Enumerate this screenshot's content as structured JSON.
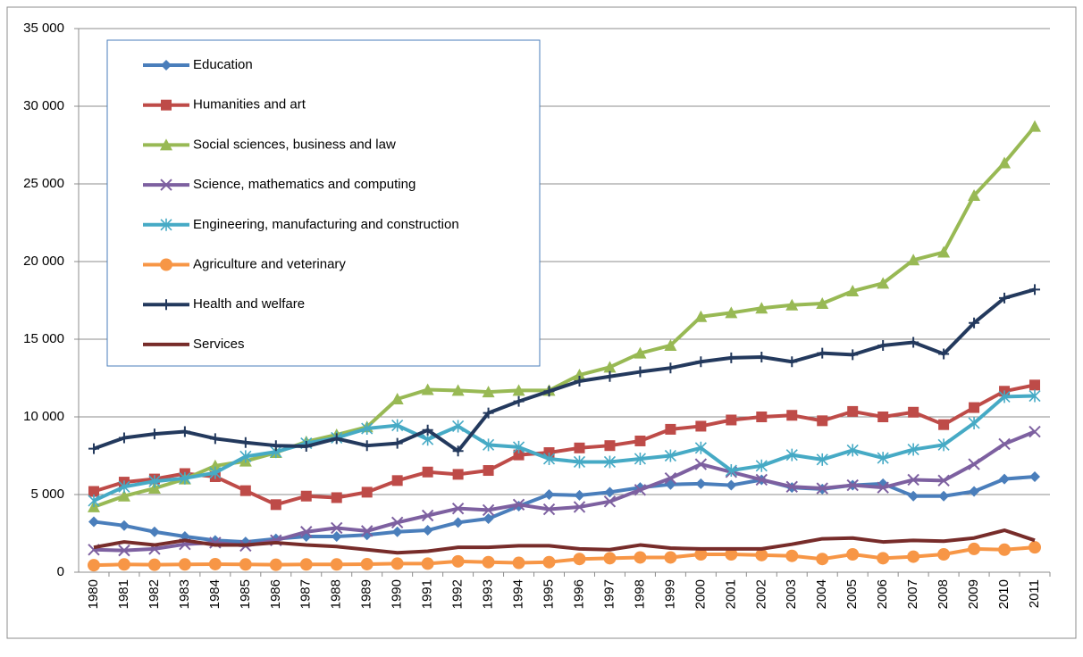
{
  "chart_data": {
    "type": "line",
    "categories": [
      "1980",
      "1981",
      "1982",
      "1983",
      "1984",
      "1985",
      "1986",
      "1987",
      "1988",
      "1989",
      "1990",
      "1991",
      "1992",
      "1993",
      "1994",
      "1995",
      "1996",
      "1997",
      "1998",
      "1999",
      "2000",
      "2001",
      "2002",
      "2003",
      "2004",
      "2005",
      "2006",
      "2007",
      "2008",
      "2009",
      "2010",
      "2011"
    ],
    "series": [
      {
        "name": "Education",
        "color": "#4a7ebb",
        "marker": "diamond",
        "values": [
          3250,
          3000,
          2600,
          2300,
          2050,
          1950,
          2150,
          2300,
          2300,
          2400,
          2600,
          2700,
          3200,
          3450,
          4250,
          5000,
          4950,
          5150,
          5450,
          5650,
          5700,
          5600,
          5950,
          5450,
          5350,
          5600,
          5700,
          4900,
          4900,
          5200,
          6000,
          6150
        ]
      },
      {
        "name": "Humanities and art",
        "color": "#be4b48",
        "marker": "square",
        "values": [
          5200,
          5800,
          6000,
          6350,
          6150,
          5250,
          4350,
          4900,
          4800,
          5150,
          5900,
          6450,
          6300,
          6550,
          7550,
          7700,
          8000,
          8150,
          8450,
          9200,
          9400,
          9800,
          10000,
          10100,
          9750,
          10350,
          10000,
          10300,
          9500,
          10600,
          11650,
          12050
        ]
      },
      {
        "name": "Social sciences, business and law",
        "color": "#98b954",
        "marker": "triangle",
        "values": [
          4200,
          4900,
          5400,
          6000,
          6850,
          7150,
          7700,
          8400,
          8850,
          9350,
          11150,
          11750,
          11700,
          11600,
          11700,
          11700,
          12700,
          13200,
          14100,
          14600,
          16450,
          16700,
          17000,
          17200,
          17300,
          18100,
          18600,
          20100,
          20600,
          24250,
          26350,
          28700
        ]
      },
      {
        "name": "Science, mathematics and computing",
        "color": "#7d60a0",
        "marker": "x",
        "values": [
          1450,
          1400,
          1500,
          1800,
          1900,
          1700,
          2050,
          2600,
          2850,
          2650,
          3200,
          3650,
          4100,
          4000,
          4350,
          4050,
          4200,
          4550,
          5300,
          6050,
          6950,
          6450,
          5950,
          5500,
          5400,
          5600,
          5450,
          5950,
          5900,
          6950,
          8250,
          9050
        ]
      },
      {
        "name": "Engineering, manufacturing and construction",
        "color": "#46aac5",
        "marker": "star",
        "values": [
          4600,
          5500,
          5850,
          6050,
          6400,
          7450,
          7750,
          8300,
          8650,
          9250,
          9450,
          8550,
          9400,
          8200,
          8050,
          7300,
          7100,
          7100,
          7300,
          7500,
          8000,
          6550,
          6850,
          7550,
          7250,
          7850,
          7350,
          7900,
          8200,
          9600,
          11300,
          11350
        ]
      },
      {
        "name": "Agriculture and veterinary",
        "color": "#f79646",
        "marker": "circle",
        "values": [
          450,
          500,
          480,
          500,
          520,
          500,
          480,
          500,
          500,
          520,
          550,
          550,
          700,
          650,
          600,
          650,
          850,
          900,
          950,
          950,
          1150,
          1150,
          1100,
          1050,
          850,
          1150,
          900,
          1000,
          1150,
          1500,
          1450,
          1600
        ]
      },
      {
        "name": "Health and welfare",
        "color": "#23395d",
        "marker": "plus",
        "values": [
          7950,
          8650,
          8900,
          9050,
          8600,
          8350,
          8150,
          8100,
          8600,
          8150,
          8300,
          9150,
          7800,
          10250,
          11000,
          11650,
          12300,
          12600,
          12900,
          13150,
          13550,
          13800,
          13850,
          13550,
          14100,
          14000,
          14600,
          14800,
          14050,
          16050,
          17650,
          18200
        ]
      },
      {
        "name": "Services",
        "color": "#772c2a",
        "marker": "none",
        "values": [
          1600,
          1950,
          1750,
          2050,
          1750,
          1750,
          1900,
          1750,
          1650,
          1450,
          1250,
          1350,
          1600,
          1600,
          1700,
          1700,
          1500,
          1450,
          1750,
          1550,
          1500,
          1500,
          1500,
          1800,
          2150,
          2200,
          1950,
          2050,
          2000,
          2200,
          2700,
          2050
        ]
      }
    ],
    "ylim": [
      0,
      35000
    ],
    "yticks": [
      0,
      {
        "value": 5000,
        "label": "5 000"
      },
      {
        "value": 10000,
        "label": "10 000"
      },
      {
        "value": 15000,
        "label": "15 000"
      },
      {
        "value": 20000,
        "label": "20 000"
      },
      {
        "value": 25000,
        "label": "25 000"
      },
      {
        "value": 30000,
        "label": "30 000"
      },
      {
        "value": 35000,
        "label": "35 000"
      }
    ],
    "grid": true,
    "legend": "upper left"
  }
}
